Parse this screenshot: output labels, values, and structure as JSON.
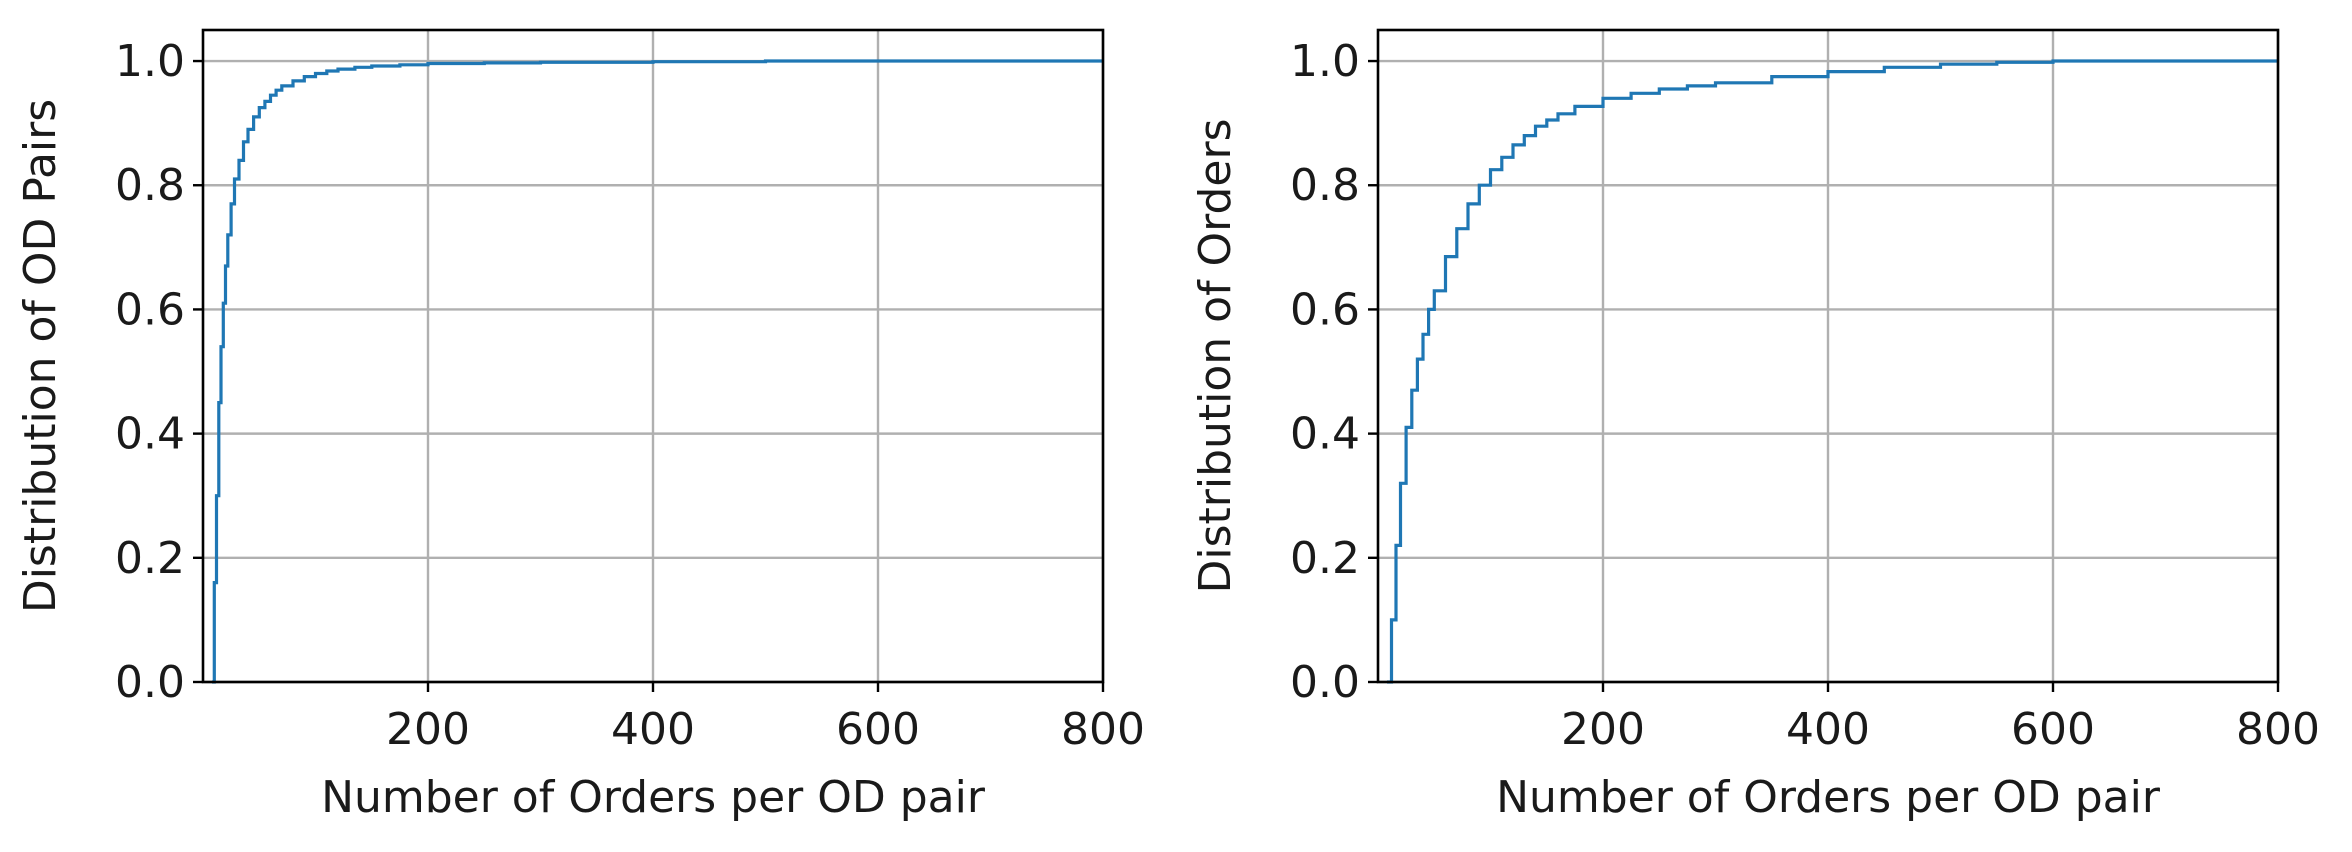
{
  "chart_data": [
    {
      "type": "line",
      "drawstyle": "steps",
      "title": "",
      "xlabel": "Number of Orders per OD pair",
      "ylabel": "Distribution of OD Pairs",
      "xlim": [
        0,
        800
      ],
      "ylim": [
        0,
        1.05
      ],
      "xticks": [
        200,
        400,
        600,
        800
      ],
      "yticks": [
        0.0,
        0.2,
        0.4,
        0.6,
        0.8,
        1.0
      ],
      "xtick_labels": [
        "200",
        "400",
        "600",
        "800"
      ],
      "ytick_labels": [
        "0.0",
        "0.2",
        "0.4",
        "0.6",
        "0.8",
        "1.0"
      ],
      "grid": true,
      "color": "#1f77b4",
      "x": [
        8,
        10,
        12,
        14,
        16,
        18,
        20,
        22,
        25,
        28,
        32,
        36,
        40,
        45,
        50,
        55,
        60,
        65,
        70,
        80,
        90,
        100,
        110,
        120,
        135,
        150,
        175,
        200,
        250,
        300,
        400,
        500,
        600,
        700,
        800
      ],
      "y": [
        0.0,
        0.16,
        0.3,
        0.45,
        0.54,
        0.61,
        0.67,
        0.72,
        0.77,
        0.81,
        0.84,
        0.87,
        0.89,
        0.91,
        0.925,
        0.935,
        0.945,
        0.953,
        0.96,
        0.968,
        0.975,
        0.98,
        0.984,
        0.987,
        0.99,
        0.992,
        0.994,
        0.996,
        0.997,
        0.998,
        0.999,
        1.0,
        1.0,
        1.0,
        1.0
      ]
    },
    {
      "type": "line",
      "drawstyle": "steps",
      "title": "",
      "xlabel": "Number of Orders per OD pair",
      "ylabel": "Distribution of Orders",
      "xlim": [
        0,
        800
      ],
      "ylim": [
        0,
        1.05
      ],
      "xticks": [
        200,
        400,
        600,
        800
      ],
      "yticks": [
        0.0,
        0.2,
        0.4,
        0.6,
        0.8,
        1.0
      ],
      "xtick_labels": [
        "200",
        "400",
        "600",
        "800"
      ],
      "ytick_labels": [
        "0.0",
        "0.2",
        "0.4",
        "0.6",
        "0.8",
        "1.0"
      ],
      "grid": true,
      "color": "#1f77b4",
      "x": [
        8,
        12,
        16,
        20,
        25,
        30,
        35,
        40,
        45,
        50,
        60,
        70,
        80,
        90,
        100,
        110,
        120,
        130,
        140,
        150,
        160,
        175,
        200,
        225,
        250,
        275,
        300,
        350,
        400,
        450,
        500,
        550,
        600,
        700,
        800
      ],
      "y": [
        0.0,
        0.1,
        0.22,
        0.32,
        0.41,
        0.47,
        0.52,
        0.56,
        0.6,
        0.63,
        0.685,
        0.73,
        0.77,
        0.8,
        0.825,
        0.845,
        0.865,
        0.88,
        0.895,
        0.905,
        0.915,
        0.927,
        0.94,
        0.948,
        0.955,
        0.96,
        0.965,
        0.975,
        0.983,
        0.99,
        0.995,
        0.998,
        1.0,
        1.0,
        1.0
      ]
    }
  ]
}
